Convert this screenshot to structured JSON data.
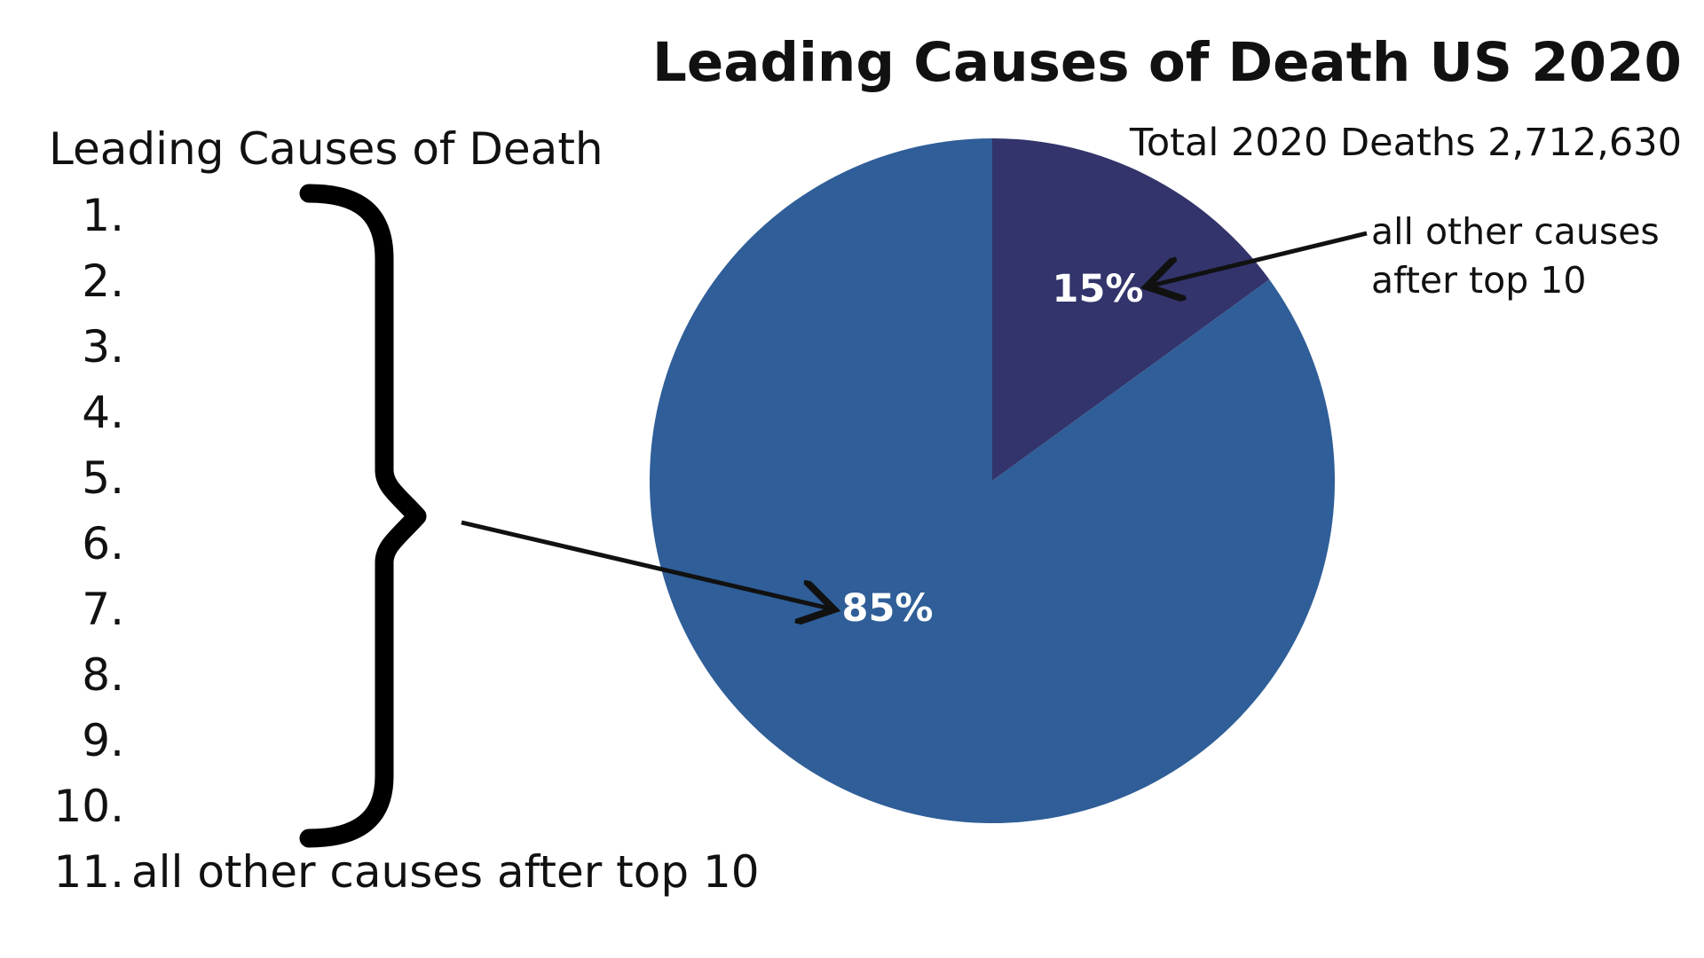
{
  "chart_data": {
    "type": "pie",
    "title": "Leading Causes of Death US 2020",
    "subtitle": "Total 2020 Deaths 2,712,630",
    "slices": [
      {
        "label": "15%",
        "value": 15,
        "color": "#32346b"
      },
      {
        "label": "85%",
        "value": 85,
        "color": "#2f5e98"
      }
    ],
    "annotation": {
      "line1": "all other causes",
      "line2": "after top 10"
    }
  },
  "list": {
    "heading": "Leading Causes of Death",
    "items": [
      {
        "num": "1.",
        "label": ""
      },
      {
        "num": "2.",
        "label": ""
      },
      {
        "num": "3.",
        "label": ""
      },
      {
        "num": "4.",
        "label": ""
      },
      {
        "num": "5.",
        "label": ""
      },
      {
        "num": "6.",
        "label": ""
      },
      {
        "num": "7.",
        "label": ""
      },
      {
        "num": "8.",
        "label": ""
      },
      {
        "num": "9.",
        "label": ""
      },
      {
        "num": "10.",
        "label": ""
      },
      {
        "num": "11.",
        "label": "all other causes after top 10"
      }
    ]
  }
}
